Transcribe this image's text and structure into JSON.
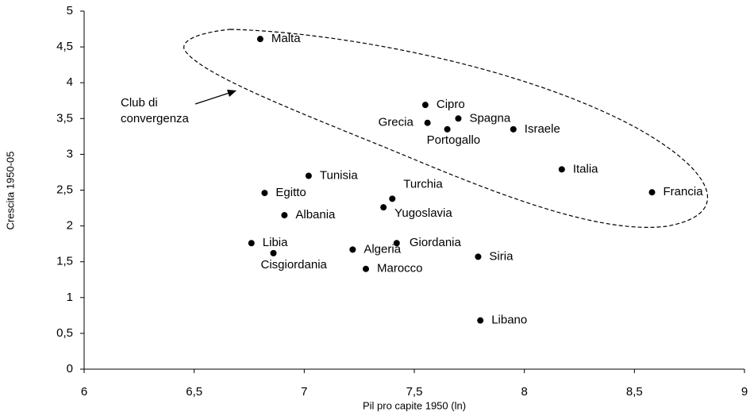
{
  "chart_data": {
    "type": "scatter",
    "xlabel": "Pil pro capite 1950 (ln)",
    "ylabel": "Crescita 1950-05",
    "annotation": "Club di convergenza",
    "color": "#000000",
    "xlim": [
      6,
      9
    ],
    "xticks": [
      6,
      {
        "value": 6.5,
        "label": "6,5"
      },
      7,
      {
        "value": 7.5,
        "label": "7,5"
      },
      8,
      {
        "value": 8.5,
        "label": "8,5"
      },
      9
    ],
    "ylim": [
      0,
      5
    ],
    "yticks": [
      0,
      {
        "value": 0.5,
        "label": "0,5"
      },
      1,
      {
        "value": 1.5,
        "label": "1,5"
      },
      2,
      {
        "value": 2.5,
        "label": "2,5"
      },
      3,
      {
        "value": 3.5,
        "label": "3,5"
      },
      4,
      {
        "value": 4.5,
        "label": "4,5"
      },
      5
    ],
    "labels": [
      "Malta",
      "Cipro",
      "Spagna",
      "Grecia",
      "Portogallo",
      "Israele",
      "Italia",
      "Francia",
      "Tunisia",
      "Egitto",
      "Turchia",
      "Yugoslavia",
      "Albania",
      "Libia",
      "Cisgiordania",
      "Algeria",
      "Giordania",
      "Siria",
      "Marocco",
      "Libano"
    ],
    "x": [
      6.8,
      7.55,
      7.7,
      7.56,
      7.65,
      7.95,
      8.17,
      8.58,
      7.02,
      6.82,
      7.4,
      7.36,
      6.91,
      6.76,
      6.86,
      7.22,
      7.42,
      7.79,
      7.28,
      7.8
    ],
    "values": [
      4.61,
      3.69,
      3.5,
      3.44,
      3.35,
      3.35,
      2.79,
      2.47,
      2.7,
      2.46,
      2.38,
      2.26,
      2.15,
      1.76,
      1.62,
      1.67,
      1.76,
      1.57,
      1.4,
      0.68
    ]
  }
}
